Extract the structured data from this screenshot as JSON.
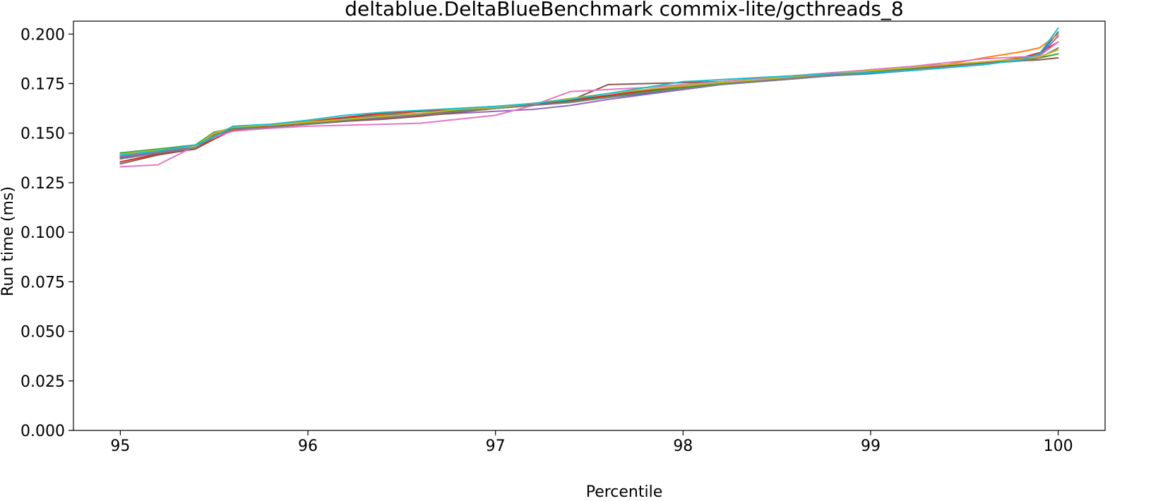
{
  "chart_data": {
    "type": "line",
    "title": "deltablue.DeltaBlueBenchmark commix-lite/gcthreads_8",
    "xlabel": "Percentile",
    "ylabel": "Run time (ms)",
    "xlim": [
      94.75,
      100.25
    ],
    "ylim": [
      0.0,
      0.2065
    ],
    "xticks": [
      95,
      96,
      97,
      98,
      99,
      100
    ],
    "xtick_labels": [
      "95",
      "96",
      "97",
      "98",
      "99",
      "100"
    ],
    "yticks": [
      0.0,
      0.025,
      0.05,
      0.075,
      0.1,
      0.125,
      0.15,
      0.175,
      0.2
    ],
    "ytick_labels": [
      "0.000",
      "0.025",
      "0.050",
      "0.075",
      "0.100",
      "0.125",
      "0.150",
      "0.175",
      "0.200"
    ],
    "grid": false,
    "legend": "none",
    "colors": [
      "#1f77b4",
      "#ff7f0e",
      "#2ca02c",
      "#d62728",
      "#9467bd",
      "#8c564b",
      "#e377c2",
      "#7f7f7f",
      "#bcbd22",
      "#17becf"
    ],
    "x": [
      95.0,
      95.2,
      95.4,
      95.5,
      95.6,
      95.8,
      96.0,
      96.2,
      96.4,
      96.6,
      96.8,
      97.0,
      97.2,
      97.4,
      97.6,
      97.8,
      98.0,
      98.2,
      98.4,
      98.6,
      98.8,
      99.0,
      99.2,
      99.4,
      99.6,
      99.8,
      99.9,
      100.0
    ],
    "series": [
      {
        "values": [
          0.1375,
          0.1405,
          0.1425,
          0.1485,
          0.1525,
          0.1535,
          0.1555,
          0.1575,
          0.159,
          0.16,
          0.1615,
          0.1625,
          0.164,
          0.166,
          0.168,
          0.17,
          0.172,
          0.1745,
          0.176,
          0.1775,
          0.179,
          0.18,
          0.1815,
          0.183,
          0.185,
          0.187,
          0.1895,
          0.201
        ]
      },
      {
        "values": [
          0.1385,
          0.141,
          0.143,
          0.1495,
          0.153,
          0.154,
          0.156,
          0.158,
          0.1595,
          0.161,
          0.1625,
          0.1635,
          0.165,
          0.1665,
          0.169,
          0.1715,
          0.1735,
          0.1755,
          0.177,
          0.1785,
          0.18,
          0.181,
          0.1825,
          0.1845,
          0.188,
          0.191,
          0.193,
          0.2
        ]
      },
      {
        "values": [
          0.14,
          0.142,
          0.144,
          0.1505,
          0.1525,
          0.1535,
          0.155,
          0.1565,
          0.158,
          0.1595,
          0.1615,
          0.163,
          0.1645,
          0.166,
          0.1685,
          0.171,
          0.173,
          0.175,
          0.1765,
          0.178,
          0.1795,
          0.181,
          0.1825,
          0.184,
          0.1855,
          0.187,
          0.188,
          0.19
        ]
      },
      {
        "values": [
          0.1355,
          0.1395,
          0.142,
          0.147,
          0.1515,
          0.1535,
          0.1555,
          0.158,
          0.16,
          0.161,
          0.162,
          0.163,
          0.1645,
          0.1665,
          0.169,
          0.1715,
          0.174,
          0.176,
          0.1775,
          0.179,
          0.1805,
          0.1815,
          0.183,
          0.184,
          0.1855,
          0.188,
          0.1905,
          0.196
        ]
      },
      {
        "values": [
          0.138,
          0.1405,
          0.143,
          0.149,
          0.152,
          0.153,
          0.1545,
          0.156,
          0.1575,
          0.159,
          0.16,
          0.161,
          0.162,
          0.164,
          0.167,
          0.1695,
          0.172,
          0.1745,
          0.1765,
          0.178,
          0.1795,
          0.1805,
          0.1815,
          0.183,
          0.185,
          0.1875,
          0.189,
          0.199
        ]
      },
      {
        "values": [
          0.1345,
          0.139,
          0.142,
          0.148,
          0.152,
          0.153,
          0.1545,
          0.156,
          0.157,
          0.1585,
          0.1605,
          0.1625,
          0.164,
          0.1665,
          0.1745,
          0.175,
          0.1755,
          0.176,
          0.177,
          0.1785,
          0.18,
          0.182,
          0.1835,
          0.1845,
          0.1855,
          0.1865,
          0.187,
          0.188
        ]
      },
      {
        "values": [
          0.133,
          0.134,
          0.1435,
          0.148,
          0.151,
          0.1525,
          0.1535,
          0.154,
          0.1545,
          0.155,
          0.157,
          0.159,
          0.164,
          0.171,
          0.172,
          0.173,
          0.1745,
          0.176,
          0.1775,
          0.179,
          0.1805,
          0.182,
          0.1835,
          0.1855,
          0.1875,
          0.1885,
          0.189,
          0.196
        ]
      },
      {
        "values": [
          0.137,
          0.14,
          0.1425,
          0.149,
          0.152,
          0.153,
          0.1545,
          0.1565,
          0.158,
          0.1595,
          0.161,
          0.1625,
          0.164,
          0.1655,
          0.168,
          0.1705,
          0.1725,
          0.1745,
          0.176,
          0.1775,
          0.179,
          0.1805,
          0.182,
          0.1835,
          0.185,
          0.1865,
          0.188,
          0.193
        ]
      },
      {
        "values": [
          0.1395,
          0.1415,
          0.1435,
          0.15,
          0.153,
          0.154,
          0.1555,
          0.157,
          0.1585,
          0.16,
          0.162,
          0.163,
          0.165,
          0.1675,
          0.17,
          0.172,
          0.174,
          0.1755,
          0.177,
          0.1785,
          0.18,
          0.1815,
          0.183,
          0.1845,
          0.186,
          0.1875,
          0.1885,
          0.192
        ]
      },
      {
        "values": [
          0.139,
          0.141,
          0.144,
          0.148,
          0.1535,
          0.1545,
          0.1565,
          0.159,
          0.1605,
          0.1615,
          0.1625,
          0.1635,
          0.165,
          0.167,
          0.17,
          0.173,
          0.176,
          0.177,
          0.178,
          0.179,
          0.18,
          0.1805,
          0.1815,
          0.183,
          0.1845,
          0.187,
          0.19,
          0.203
        ]
      }
    ]
  }
}
